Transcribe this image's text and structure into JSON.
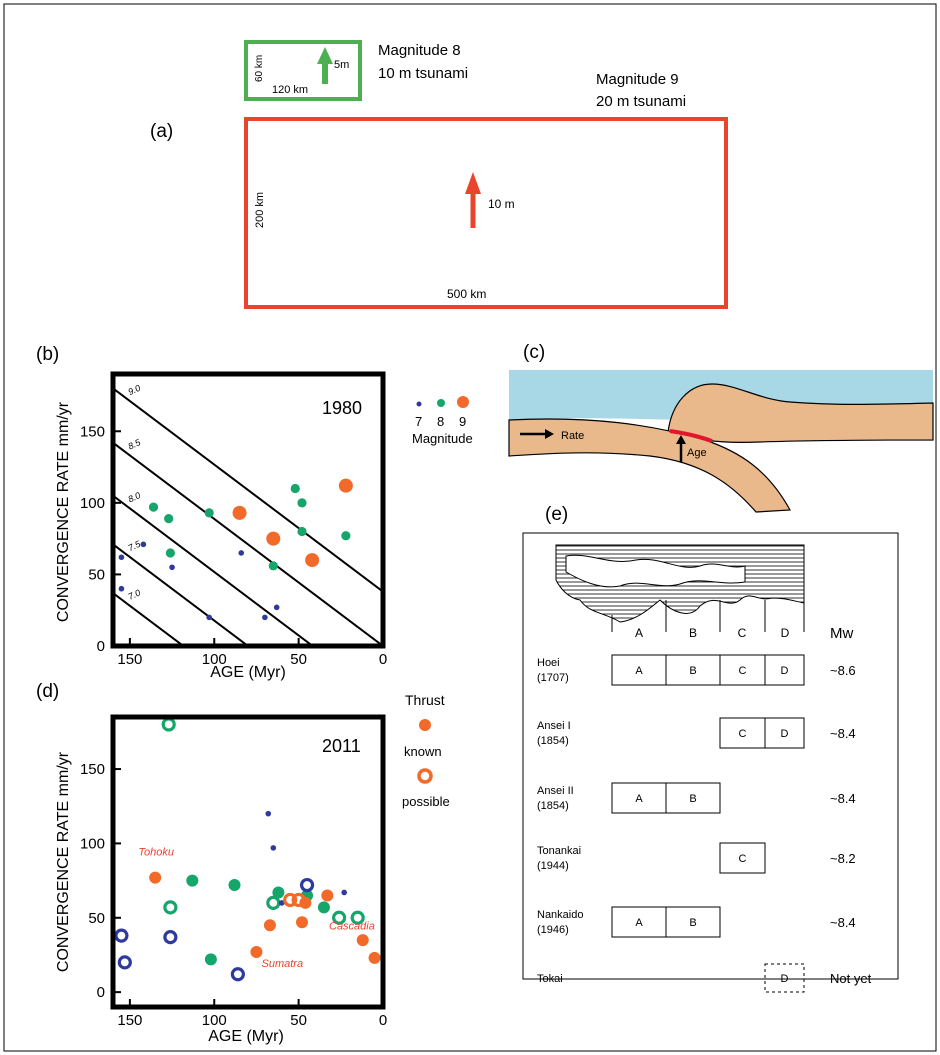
{
  "panel_a": {
    "label": "(a)",
    "small_rupture": {
      "width_label": "120 km",
      "height_label": "60 km",
      "slip_label": "5m",
      "title": "Magnitude 8",
      "subtitle": "10 m tsunami",
      "color": "#4caf50"
    },
    "large_rupture": {
      "width_label": "500 km",
      "height_label": "200 km",
      "slip_label": "10 m",
      "title": "Magnitude 9",
      "subtitle": "20 m tsunami",
      "color": "#e8452c"
    }
  },
  "panel_c": {
    "label": "(c)",
    "rate_label": "Rate",
    "age_label": "Age",
    "colors": {
      "ocean": "#a8d8e6",
      "plate": "#e9b98c",
      "interface": "#e4142c"
    }
  },
  "panel_e": {
    "label": "(e)",
    "segment_labels": [
      "A",
      "B",
      "C",
      "D"
    ],
    "mw_header": "Mw",
    "events": [
      {
        "name": "Hoei",
        "year": "(1707)",
        "segments": [
          "A",
          "B",
          "C",
          "D"
        ],
        "mw": "~8.6",
        "style": "solid"
      },
      {
        "name": "Ansei I",
        "year": "(1854)",
        "segments": [
          "C",
          "D"
        ],
        "mw": "~8.4",
        "style": "solid"
      },
      {
        "name": "Ansei II",
        "year": "(1854)",
        "segments": [
          "A",
          "B"
        ],
        "mw": "~8.4",
        "style": "solid"
      },
      {
        "name": "Tonankai",
        "year": "(1944)",
        "segments": [
          "C"
        ],
        "mw": "~8.2",
        "style": "solid"
      },
      {
        "name": "Nankaido",
        "year": "(1946)",
        "segments": [
          "A",
          "B"
        ],
        "mw": "~8.4",
        "style": "solid"
      },
      {
        "name": "Tokai",
        "year": "",
        "segments": [
          "D"
        ],
        "mw": "Not yet",
        "style": "dashed"
      }
    ]
  },
  "chart_data": [
    {
      "id": "b",
      "type": "scatter",
      "panel_label": "(b)",
      "year_label": "1980",
      "xlabel": "AGE (Myr)",
      "ylabel": "CONVERGENCE RATE mm/yr",
      "xlim": [
        160,
        0
      ],
      "ylim": [
        0,
        190
      ],
      "xticks": [
        150,
        100,
        50,
        0
      ],
      "yticks": [
        0,
        50,
        100,
        150
      ],
      "legend": {
        "entries": [
          "7",
          "8",
          "9"
        ],
        "title": "Magnitude",
        "placement": "right"
      },
      "contours": [
        {
          "label": "9.0",
          "y_at_160": 180,
          "y_at_0": 38
        },
        {
          "label": "8.5",
          "y_at_160": 142,
          "y_at_0": 0
        },
        {
          "label": "8.0",
          "y_at_160": 105,
          "y_at_0": -37
        },
        {
          "label": "7.5",
          "y_at_160": 71,
          "y_at_0": -71
        },
        {
          "label": "7.0",
          "y_at_160": 37,
          "y_at_0": -105
        }
      ],
      "series": [
        {
          "name": "7",
          "color": "#2e3a9e",
          "size": "small",
          "points": [
            [
              155,
              62
            ],
            [
              155,
              40
            ],
            [
              142,
              71
            ],
            [
              125,
              55
            ],
            [
              103,
              20
            ],
            [
              84,
              65
            ],
            [
              70,
              20
            ],
            [
              63,
              27
            ]
          ]
        },
        {
          "name": "8",
          "color": "#16a56a",
          "size": "medium",
          "points": [
            [
              136,
              97
            ],
            [
              127,
              89
            ],
            [
              126,
              65
            ],
            [
              103,
              93
            ],
            [
              65,
              56
            ],
            [
              52,
              110
            ],
            [
              48,
              100
            ],
            [
              48,
              80
            ],
            [
              22,
              77
            ]
          ]
        },
        {
          "name": "9",
          "color": "#f26a2a",
          "size": "large",
          "points": [
            [
              85,
              93
            ],
            [
              65,
              75
            ],
            [
              42,
              60
            ],
            [
              22,
              112
            ]
          ]
        }
      ]
    },
    {
      "id": "d",
      "type": "scatter",
      "panel_label": "(d)",
      "year_label": "2011",
      "xlabel": "AGE (Myr)",
      "ylabel": "CONVERGENCE RATE mm/yr",
      "xlim": [
        160,
        0
      ],
      "ylim": [
        -10,
        185
      ],
      "xticks": [
        150,
        100,
        50,
        0
      ],
      "yticks": [
        0,
        50,
        100,
        150
      ],
      "legend": {
        "title": "Thrust",
        "entries": [
          "known",
          "possible"
        ],
        "placement": "right"
      },
      "annotations": [
        {
          "text": "Tohoku",
          "x": 145,
          "y": 92
        },
        {
          "text": "Sumatra",
          "x": 72,
          "y": 17
        },
        {
          "text": "Cascadia",
          "x": 32,
          "y": 42
        }
      ],
      "series": [
        {
          "name": "green_solid",
          "color": "#16a56a",
          "style": "filled",
          "points": [
            [
              113,
              75
            ],
            [
              88,
              72
            ],
            [
              102,
              22
            ],
            [
              62,
              67
            ],
            [
              35,
              57
            ],
            [
              45,
              65
            ]
          ]
        },
        {
          "name": "green_hollow",
          "color": "#16a56a",
          "style": "hollow",
          "points": [
            [
              127,
              180
            ],
            [
              126,
              57
            ],
            [
              65,
              60
            ],
            [
              26,
              50
            ],
            [
              15,
              50
            ]
          ]
        },
        {
          "name": "blue_hollow",
          "color": "#2e3a9e",
          "style": "hollow",
          "points": [
            [
              155,
              38
            ],
            [
              153,
              20
            ],
            [
              126,
              37
            ],
            [
              86,
              12
            ],
            [
              45,
              72
            ]
          ]
        },
        {
          "name": "blue_small",
          "color": "#2e3a9e",
          "style": "small",
          "points": [
            [
              68,
              120
            ],
            [
              65,
              97
            ],
            [
              60,
              60
            ],
            [
              23,
              67
            ]
          ]
        },
        {
          "name": "known",
          "color": "#f26a2a",
          "style": "filled",
          "points": [
            [
              135,
              77
            ],
            [
              75,
              27
            ],
            [
              67,
              45
            ],
            [
              48,
              47
            ],
            [
              46,
              60
            ],
            [
              33,
              65
            ],
            [
              12,
              35
            ],
            [
              5,
              23
            ]
          ]
        },
        {
          "name": "possible",
          "color": "#f26a2a",
          "style": "hollow",
          "points": [
            [
              55,
              62
            ],
            [
              50,
              62
            ]
          ]
        }
      ]
    }
  ]
}
